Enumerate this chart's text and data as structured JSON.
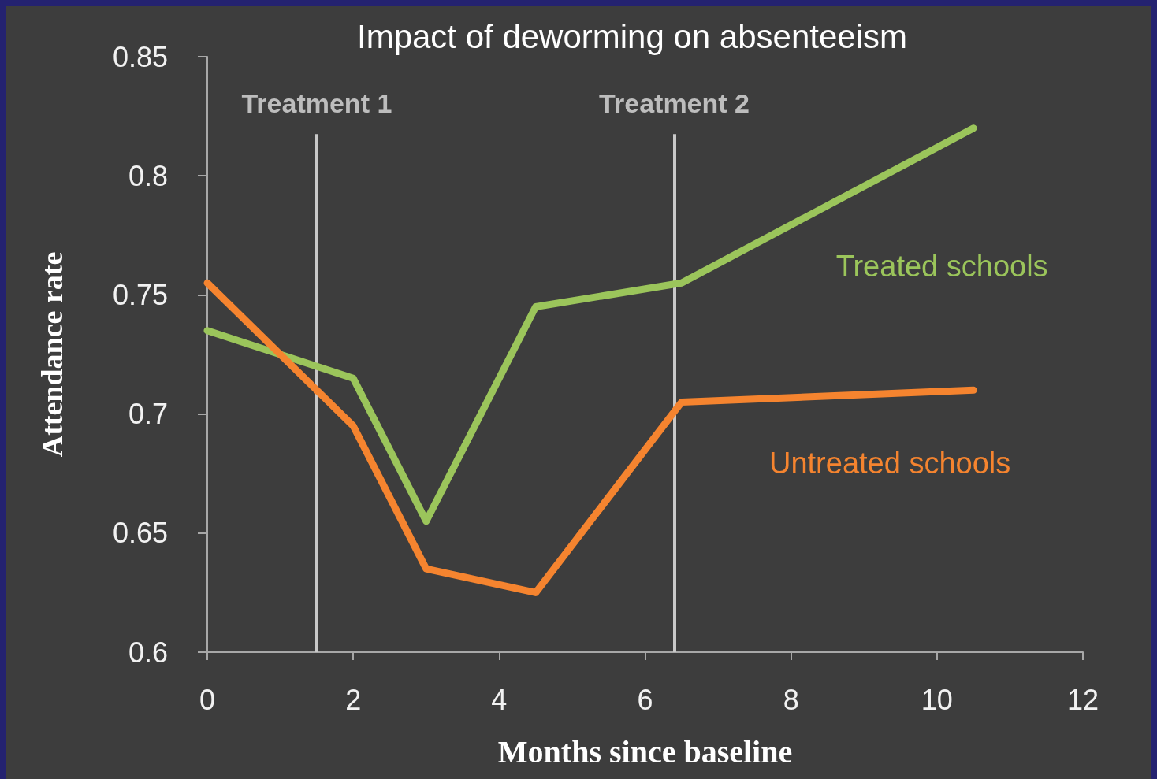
{
  "chart_data": {
    "type": "line",
    "title": "Impact of deworming on absenteeism",
    "xlabel": "Months since baseline",
    "ylabel": "Attendance rate",
    "x": [
      0,
      2,
      3,
      4.5,
      6.5,
      10.5
    ],
    "series": [
      {
        "name": "Treated schools",
        "color": "#9bc55b",
        "values": [
          0.735,
          0.715,
          0.655,
          0.745,
          0.755,
          0.82
        ]
      },
      {
        "name": "Untreated schools",
        "color": "#f5842f",
        "values": [
          0.755,
          0.695,
          0.635,
          0.625,
          0.705,
          0.71
        ]
      }
    ],
    "xlim": [
      0,
      12
    ],
    "xticks": [
      0,
      2,
      4,
      6,
      8,
      10,
      12
    ],
    "ylim": [
      0.6,
      0.85
    ],
    "yticks": [
      0.6,
      0.65,
      0.7,
      0.75,
      0.8,
      0.85
    ],
    "ref_lines": [
      {
        "axis": "x",
        "value": 1.5,
        "label": "Treatment 1",
        "color": "#c8c8c8"
      },
      {
        "axis": "x",
        "value": 6.4,
        "label": "Treatment 2",
        "color": "#c8c8c8"
      }
    ],
    "grid": false,
    "legend": false,
    "marker": "none",
    "line_style": "solid"
  }
}
